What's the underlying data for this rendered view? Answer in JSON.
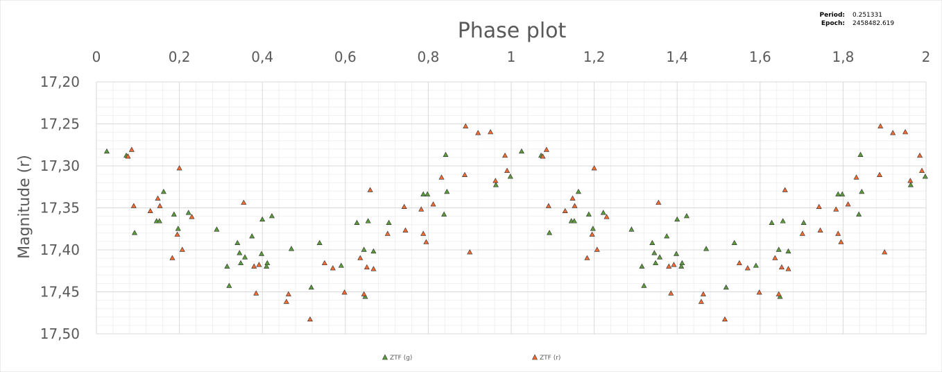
{
  "info": {
    "period_label": "Period:",
    "period_value": "0.251331",
    "epoch_label": "Epoch:",
    "epoch_value": "2458482.619"
  },
  "colors": {
    "g_fill": "#5b9b3c",
    "r_fill": "#f26b32",
    "marker_stroke": "#2b2b2b",
    "text": "#595959",
    "grid_major": "#d9d9d9",
    "grid_minor": "#f0f0f0"
  },
  "chart_data": {
    "type": "scatter",
    "title": "Phase plot",
    "xlabel": "",
    "ylabel": "Magnitude (r)",
    "xlim": [
      0,
      2
    ],
    "ylim": [
      17.2,
      17.5
    ],
    "y_reversed": true,
    "x_axis_position": "top",
    "x_ticks": [
      "0",
      "0,2",
      "0,4",
      "0,6",
      "0,8",
      "1",
      "1,2",
      "1,4",
      "1,6",
      "1,8",
      "2"
    ],
    "y_ticks": [
      "17,20",
      "17,25",
      "17,30",
      "17,35",
      "17,40",
      "17,45",
      "17,50"
    ],
    "grid": true,
    "legend_position": "bottom",
    "series": [
      {
        "name": "ZTF (g)",
        "marker": "triangle",
        "points": [
          [
            0.025,
            17.283
          ],
          [
            0.072,
            17.288
          ],
          [
            0.092,
            17.38
          ],
          [
            0.145,
            17.366
          ],
          [
            0.152,
            17.366
          ],
          [
            0.162,
            17.331
          ],
          [
            0.187,
            17.358
          ],
          [
            0.197,
            17.375
          ],
          [
            0.222,
            17.356
          ],
          [
            0.29,
            17.376
          ],
          [
            0.315,
            17.42
          ],
          [
            0.32,
            17.443
          ],
          [
            0.34,
            17.392
          ],
          [
            0.345,
            17.404
          ],
          [
            0.348,
            17.416
          ],
          [
            0.358,
            17.409
          ],
          [
            0.375,
            17.384
          ],
          [
            0.398,
            17.405
          ],
          [
            0.4,
            17.364
          ],
          [
            0.41,
            17.42
          ],
          [
            0.412,
            17.416
          ],
          [
            0.423,
            17.36
          ],
          [
            0.47,
            17.399
          ],
          [
            0.518,
            17.445
          ],
          [
            0.538,
            17.392
          ],
          [
            0.59,
            17.419
          ],
          [
            0.628,
            17.368
          ],
          [
            0.645,
            17.4
          ],
          [
            0.648,
            17.456
          ],
          [
            0.655,
            17.366
          ],
          [
            0.668,
            17.402
          ],
          [
            0.705,
            17.368
          ],
          [
            0.788,
            17.334
          ],
          [
            0.798,
            17.334
          ],
          [
            0.838,
            17.358
          ],
          [
            0.842,
            17.287
          ],
          [
            0.845,
            17.331
          ],
          [
            0.963,
            17.323
          ],
          [
            0.998,
            17.313
          ],
          [
            1.025,
            17.283
          ],
          [
            1.072,
            17.288
          ],
          [
            1.092,
            17.38
          ],
          [
            1.145,
            17.366
          ],
          [
            1.152,
            17.366
          ],
          [
            1.162,
            17.331
          ],
          [
            1.187,
            17.358
          ],
          [
            1.197,
            17.375
          ],
          [
            1.222,
            17.356
          ],
          [
            1.29,
            17.376
          ],
          [
            1.315,
            17.42
          ],
          [
            1.32,
            17.443
          ],
          [
            1.34,
            17.392
          ],
          [
            1.345,
            17.404
          ],
          [
            1.348,
            17.416
          ],
          [
            1.358,
            17.409
          ],
          [
            1.375,
            17.384
          ],
          [
            1.398,
            17.405
          ],
          [
            1.4,
            17.364
          ],
          [
            1.41,
            17.42
          ],
          [
            1.412,
            17.416
          ],
          [
            1.423,
            17.36
          ],
          [
            1.47,
            17.399
          ],
          [
            1.518,
            17.445
          ],
          [
            1.538,
            17.392
          ],
          [
            1.59,
            17.419
          ],
          [
            1.628,
            17.368
          ],
          [
            1.645,
            17.4
          ],
          [
            1.648,
            17.456
          ],
          [
            1.655,
            17.366
          ],
          [
            1.668,
            17.402
          ],
          [
            1.705,
            17.368
          ],
          [
            1.788,
            17.334
          ],
          [
            1.798,
            17.334
          ],
          [
            1.838,
            17.358
          ],
          [
            1.842,
            17.287
          ],
          [
            1.845,
            17.331
          ],
          [
            1.963,
            17.323
          ],
          [
            1.998,
            17.313
          ]
        ]
      },
      {
        "name": "ZTF (r)",
        "marker": "triangle",
        "points": [
          [
            0.076,
            17.289
          ],
          [
            0.085,
            17.281
          ],
          [
            0.09,
            17.348
          ],
          [
            0.13,
            17.354
          ],
          [
            0.148,
            17.339
          ],
          [
            0.153,
            17.348
          ],
          [
            0.183,
            17.41
          ],
          [
            0.195,
            17.382
          ],
          [
            0.2,
            17.303
          ],
          [
            0.207,
            17.4
          ],
          [
            0.23,
            17.361
          ],
          [
            0.355,
            17.344
          ],
          [
            0.38,
            17.42
          ],
          [
            0.385,
            17.452
          ],
          [
            0.392,
            17.418
          ],
          [
            0.458,
            17.462
          ],
          [
            0.463,
            17.453
          ],
          [
            0.515,
            17.483
          ],
          [
            0.55,
            17.416
          ],
          [
            0.57,
            17.422
          ],
          [
            0.598,
            17.451
          ],
          [
            0.636,
            17.41
          ],
          [
            0.645,
            17.453
          ],
          [
            0.652,
            17.421
          ],
          [
            0.66,
            17.329
          ],
          [
            0.668,
            17.423
          ],
          [
            0.702,
            17.381
          ],
          [
            0.742,
            17.349
          ],
          [
            0.745,
            17.377
          ],
          [
            0.783,
            17.352
          ],
          [
            0.788,
            17.381
          ],
          [
            0.795,
            17.391
          ],
          [
            0.812,
            17.346
          ],
          [
            0.832,
            17.314
          ],
          [
            0.89,
            17.253
          ],
          [
            0.888,
            17.311
          ],
          [
            0.9,
            17.403
          ],
          [
            0.92,
            17.261
          ],
          [
            0.95,
            17.26
          ],
          [
            0.962,
            17.318
          ],
          [
            0.985,
            17.288
          ],
          [
            0.99,
            17.306
          ],
          [
            1.076,
            17.289
          ],
          [
            1.085,
            17.281
          ],
          [
            1.09,
            17.348
          ],
          [
            1.13,
            17.354
          ],
          [
            1.148,
            17.339
          ],
          [
            1.153,
            17.348
          ],
          [
            1.183,
            17.41
          ],
          [
            1.195,
            17.382
          ],
          [
            1.2,
            17.303
          ],
          [
            1.207,
            17.4
          ],
          [
            1.23,
            17.361
          ],
          [
            1.355,
            17.344
          ],
          [
            1.38,
            17.42
          ],
          [
            1.385,
            17.452
          ],
          [
            1.392,
            17.418
          ],
          [
            1.458,
            17.462
          ],
          [
            1.463,
            17.453
          ],
          [
            1.515,
            17.483
          ],
          [
            1.55,
            17.416
          ],
          [
            1.57,
            17.422
          ],
          [
            1.598,
            17.451
          ],
          [
            1.636,
            17.41
          ],
          [
            1.645,
            17.453
          ],
          [
            1.652,
            17.421
          ],
          [
            1.66,
            17.329
          ],
          [
            1.668,
            17.423
          ],
          [
            1.702,
            17.381
          ],
          [
            1.742,
            17.349
          ],
          [
            1.745,
            17.377
          ],
          [
            1.783,
            17.352
          ],
          [
            1.788,
            17.381
          ],
          [
            1.795,
            17.391
          ],
          [
            1.812,
            17.346
          ],
          [
            1.832,
            17.314
          ],
          [
            1.89,
            17.253
          ],
          [
            1.888,
            17.311
          ],
          [
            1.9,
            17.403
          ],
          [
            1.92,
            17.261
          ],
          [
            1.95,
            17.26
          ],
          [
            1.962,
            17.318
          ],
          [
            1.985,
            17.288
          ],
          [
            1.99,
            17.306
          ]
        ]
      }
    ]
  }
}
